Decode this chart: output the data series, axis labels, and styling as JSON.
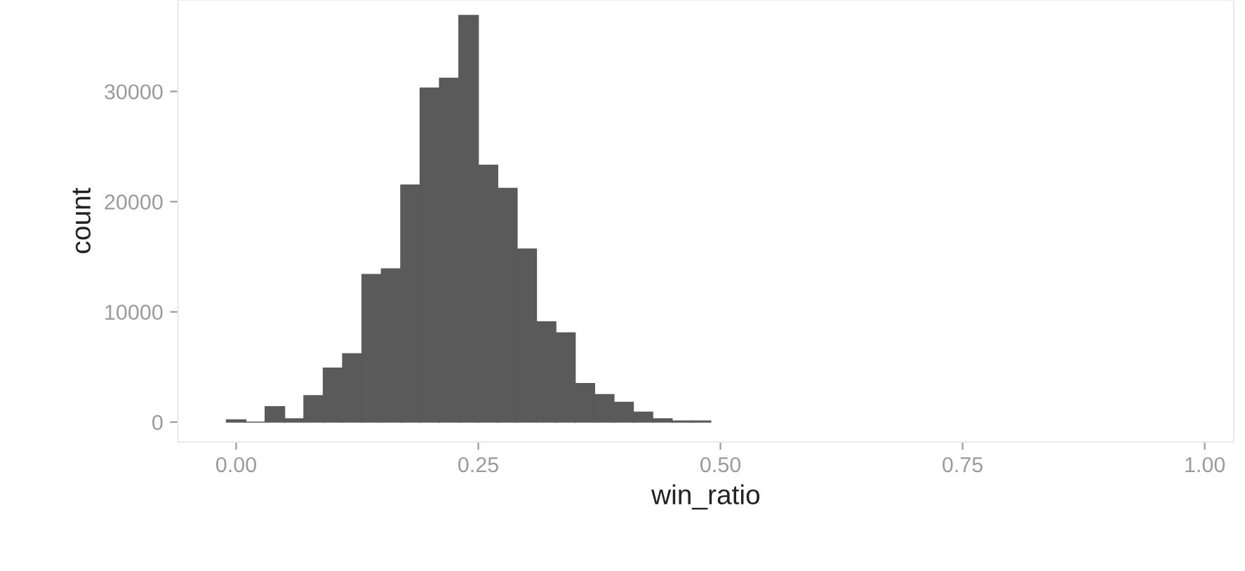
{
  "chart_data": {
    "type": "histogram",
    "xlabel": "win_ratio",
    "ylabel": "count",
    "bins": [
      -0.01,
      0.01,
      0.03,
      0.05,
      0.07,
      0.09,
      0.11,
      0.13,
      0.15,
      0.17,
      0.19,
      0.21,
      0.23,
      0.25,
      0.27,
      0.29,
      0.31,
      0.33,
      0.35,
      0.37,
      0.39,
      0.41,
      0.43,
      0.45,
      0.47,
      0.49
    ],
    "values": [
      200,
      0,
      1400,
      300,
      2400,
      4900,
      6200,
      13400,
      13900,
      21500,
      30300,
      31200,
      36900,
      23300,
      21200,
      15700,
      9100,
      8100,
      3500,
      2500,
      1800,
      900,
      300,
      100,
      100
    ],
    "color": "#5a5a5a",
    "xlim": [
      -0.06,
      1.03
    ],
    "xticks": [
      {
        "value": 0,
        "label": "0.00"
      },
      {
        "value": 0.25,
        "label": "0.25"
      },
      {
        "value": 0.5,
        "label": "0.50"
      },
      {
        "value": 0.75,
        "label": "0.75"
      },
      {
        "value": 1,
        "label": "1.00"
      }
    ],
    "ylim": [
      -1800,
      38300
    ],
    "yticks": [
      0,
      10000,
      20000,
      30000
    ],
    "grid": false
  }
}
